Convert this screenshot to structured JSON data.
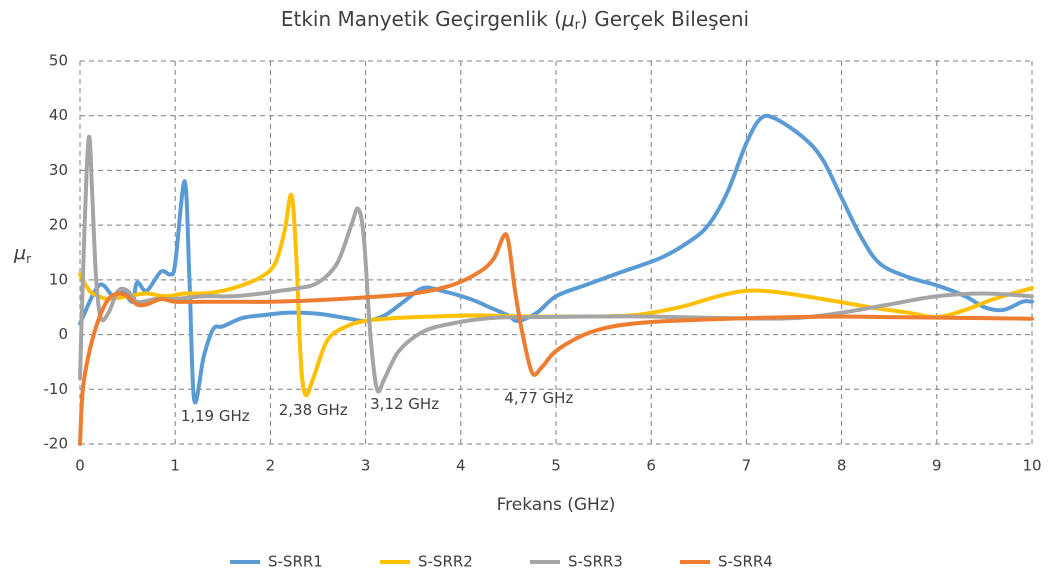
{
  "chart_data": {
    "type": "line",
    "title": [
      "Etkin Manyetik Geçirgenlik (",
      "μ",
      "r",
      ") Gerçek  Bileşeni"
    ],
    "xlabel": "Frekans (GHz)",
    "ylabel": [
      "μ",
      "r"
    ],
    "xlim": [
      0,
      10
    ],
    "ylim": [
      -20,
      50
    ],
    "xticks": [
      0,
      1,
      2,
      3,
      4,
      5,
      6,
      7,
      8,
      9,
      10
    ],
    "yticks": [
      -20,
      -10,
      0,
      10,
      20,
      30,
      40,
      50
    ],
    "grid": true,
    "legend": "bottom",
    "annotations": [
      {
        "text": "1,19 GHz",
        "x": 1.42,
        "y": -15
      },
      {
        "text": "2,38 GHz",
        "x": 2.45,
        "y": -13.9
      },
      {
        "text": "3,12 GHz",
        "x": 3.41,
        "y": -12.8
      },
      {
        "text": "4,77 GHz",
        "x": 4.82,
        "y": -11.7
      }
    ],
    "series": [
      {
        "name": "S-SRR1",
        "color": "#5b9bd5",
        "x": [
          0,
          0.2,
          0.35,
          0.45,
          0.55,
          0.6,
          0.7,
          0.85,
          0.95,
          1.0,
          1.1,
          1.15,
          1.2,
          1.3,
          1.4,
          1.5,
          1.7,
          1.9,
          2.2,
          2.5,
          2.8,
          3.0,
          3.2,
          3.4,
          3.6,
          3.8,
          4.1,
          4.3,
          4.5,
          4.6,
          4.8,
          5.0,
          5.3,
          5.7,
          6.1,
          6.4,
          6.6,
          6.8,
          7.0,
          7.15,
          7.3,
          7.6,
          7.8,
          8.0,
          8.2,
          8.4,
          8.7,
          9.0,
          9.3,
          9.5,
          9.7,
          9.9,
          10
        ],
        "values": [
          2,
          9,
          7,
          8,
          6,
          9.5,
          8,
          11.5,
          11,
          13,
          28,
          10,
          -12,
          -4,
          1,
          1.5,
          3,
          3.5,
          4,
          3.8,
          3,
          2.5,
          3.5,
          6,
          8.5,
          8,
          6.5,
          5,
          3.5,
          2.5,
          4,
          7,
          9,
          11.5,
          14,
          17,
          20,
          26,
          35,
          39.5,
          39.5,
          36,
          32,
          25,
          18,
          13,
          10.5,
          9,
          7,
          5,
          4.5,
          6,
          6
        ]
      },
      {
        "name": "S-SRR2",
        "color": "#ffc000",
        "x": [
          0,
          0.1,
          0.2,
          0.3,
          0.5,
          0.7,
          0.9,
          1.1,
          1.3,
          1.5,
          1.7,
          1.9,
          2.05,
          2.15,
          2.22,
          2.27,
          2.32,
          2.37,
          2.45,
          2.6,
          2.8,
          3.0,
          3.3,
          3.7,
          4.2,
          4.7,
          5.2,
          5.8,
          6.3,
          6.7,
          7.0,
          7.3,
          7.8,
          8.3,
          8.7,
          9.0,
          9.3,
          9.6,
          10
        ],
        "values": [
          11,
          8,
          7,
          6.5,
          7,
          7.5,
          7,
          7.5,
          7.5,
          8,
          9,
          10.5,
          13,
          19,
          25.5,
          15,
          -5,
          -11,
          -8,
          -1,
          1.5,
          2.5,
          3,
          3.3,
          3.5,
          3.3,
          3.3,
          3.5,
          5,
          7,
          8,
          7.8,
          6.5,
          5,
          4,
          3.2,
          4.5,
          6.5,
          8.5
        ]
      },
      {
        "name": "S-SRR3",
        "color": "#a5a5a5",
        "x": [
          0,
          0.03,
          0.07,
          0.1,
          0.13,
          0.17,
          0.22,
          0.3,
          0.4,
          0.5,
          0.6,
          0.8,
          1.0,
          1.3,
          1.6,
          1.9,
          2.1,
          2.3,
          2.5,
          2.7,
          2.85,
          2.92,
          2.98,
          3.05,
          3.12,
          3.2,
          3.35,
          3.6,
          3.9,
          4.3,
          4.7,
          5.3,
          6.0,
          6.8,
          7.5,
          8.0,
          8.5,
          9.0,
          9.5,
          10
        ],
        "values": [
          -8,
          10,
          30,
          36,
          25,
          10,
          3,
          4,
          8,
          8,
          6,
          6.5,
          6.5,
          7,
          7,
          7.5,
          8,
          8.5,
          9.5,
          13,
          20,
          23,
          18,
          0,
          -10,
          -8,
          -3,
          0.5,
          2,
          3,
          3.2,
          3.3,
          3.3,
          3,
          3,
          4,
          5.5,
          7,
          7.5,
          7
        ]
      },
      {
        "name": "S-SRR4",
        "color": "#ed7d31",
        "x": [
          0,
          0.03,
          0.1,
          0.2,
          0.3,
          0.4,
          0.5,
          0.6,
          0.7,
          0.85,
          1.0,
          1.3,
          1.6,
          2.0,
          2.5,
          3.0,
          3.5,
          3.9,
          4.2,
          4.35,
          4.45,
          4.5,
          4.57,
          4.65,
          4.75,
          4.85,
          5.0,
          5.3,
          5.6,
          6.0,
          6.5,
          7.0,
          7.5,
          8.0,
          8.5,
          9.0,
          9.5,
          10
        ],
        "values": [
          -20,
          -10,
          -3,
          3,
          6.5,
          7.5,
          7,
          5.5,
          5.5,
          6.5,
          6,
          6,
          6,
          6,
          6.3,
          6.8,
          7.5,
          9,
          11.5,
          14,
          18,
          17,
          8,
          0,
          -7,
          -6,
          -3,
          0,
          1.5,
          2.3,
          2.7,
          3,
          3.2,
          3.3,
          3.2,
          3.1,
          3,
          2.9
        ]
      }
    ]
  }
}
